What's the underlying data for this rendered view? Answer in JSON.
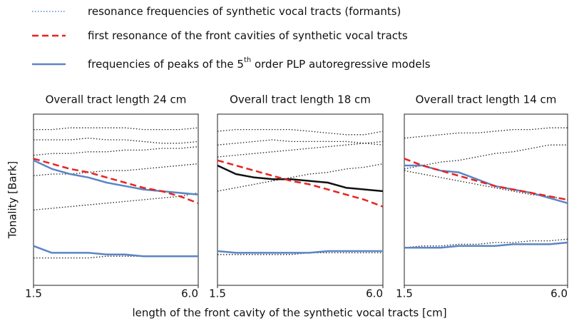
{
  "legend": [
    {
      "label": "resonance frequencies of synthetic vocal tracts (formants)",
      "color": "#3b6fc4",
      "style": "dotted"
    },
    {
      "label": "first resonance of the front cavities of synthetic vocal tracts",
      "color": "#e8231f",
      "style": "dashed"
    },
    {
      "label": "frequencies of peaks of the 5",
      "sup": "th",
      "label_end": " order PLP autoregressive models",
      "color": "#5b86c5",
      "style": "solid"
    }
  ],
  "xlabel": "length of the front cavity of the synthetic vocal tracts [cm]",
  "ylabel": "Tonality [Bark]",
  "chart_data": [
    {
      "type": "line",
      "title": "Overall tract length 24 cm",
      "x": [
        1.5,
        2.0,
        2.5,
        3.0,
        3.5,
        4.0,
        4.5,
        5.0,
        5.5,
        6.0
      ],
      "xlim": [
        1.5,
        6.0
      ],
      "xticks": [
        1.5,
        {
          "value": 6.0,
          "label": "6.0"
        }
      ],
      "ylim": [
        0,
        100
      ],
      "series": [
        {
          "color": "#222222",
          "style": "dotted",
          "values": [
            91,
            91,
            92,
            92,
            92,
            92,
            91,
            91,
            91,
            92
          ]
        },
        {
          "color": "#222222",
          "style": "dotted",
          "values": [
            85,
            85,
            85,
            86,
            85,
            85,
            84,
            83,
            83,
            84
          ]
        },
        {
          "color": "#222222",
          "style": "dotted",
          "values": [
            76,
            77,
            77,
            78,
            78,
            79,
            79,
            80,
            80,
            81
          ]
        },
        {
          "color": "#222222",
          "style": "dotted",
          "values": [
            64,
            65,
            65,
            66,
            67,
            67,
            68,
            69,
            70,
            71
          ]
        },
        {
          "color": "#222222",
          "style": "dotted",
          "values": [
            44,
            45,
            46,
            47,
            48,
            49,
            50,
            51,
            52,
            54
          ]
        },
        {
          "color": "#222222",
          "style": "dotted",
          "values": [
            16,
            16,
            16,
            16,
            17,
            17,
            17,
            17,
            17,
            17
          ]
        },
        {
          "color": "#5b86c5",
          "style": "solid",
          "values": [
            73,
            68,
            65,
            63,
            60,
            58,
            56,
            55,
            54,
            53
          ]
        },
        {
          "color": "#5b86c5",
          "style": "solid",
          "values": [
            23,
            19,
            19,
            19,
            18,
            18,
            17,
            17,
            17,
            17
          ]
        },
        {
          "color": "#e8231f",
          "style": "dashed",
          "values": [
            74,
            71,
            68,
            66,
            63,
            60,
            57,
            55,
            52,
            48
          ]
        }
      ]
    },
    {
      "type": "line",
      "title": "Overall tract length 18 cm",
      "x": [
        1.5,
        2.0,
        2.5,
        3.0,
        3.5,
        4.0,
        4.5,
        5.0,
        5.5,
        6.0
      ],
      "xlim": [
        1.5,
        6.0
      ],
      "xticks": [
        1.5,
        {
          "value": 6.0,
          "label": "6.0"
        }
      ],
      "ylim": [
        0,
        100
      ],
      "series": [
        {
          "color": "#222222",
          "style": "dotted",
          "values": [
            90,
            91,
            91,
            91,
            91,
            90,
            89,
            88,
            88,
            90
          ]
        },
        {
          "color": "#222222",
          "style": "dotted",
          "values": [
            82,
            83,
            84,
            85,
            84,
            84,
            84,
            84,
            83,
            82
          ]
        },
        {
          "color": "#222222",
          "style": "dotted",
          "values": [
            75,
            76,
            77,
            78,
            79,
            80,
            81,
            82,
            83,
            84
          ]
        },
        {
          "color": "#222222",
          "style": "dotted",
          "values": [
            55,
            57,
            59,
            61,
            63,
            65,
            66,
            68,
            69,
            71
          ]
        },
        {
          "color": "#222222",
          "style": "dotted",
          "values": [
            18,
            18,
            18,
            18,
            18,
            19,
            19,
            19,
            19,
            19
          ]
        },
        {
          "color": "#111111",
          "style": "solid",
          "values": [
            70,
            65,
            63,
            62,
            62,
            61,
            60,
            57,
            56,
            55
          ]
        },
        {
          "color": "#5b86c5",
          "style": "solid",
          "values": [
            20,
            19,
            19,
            19,
            19,
            19,
            20,
            20,
            20,
            20
          ]
        },
        {
          "color": "#e8231f",
          "style": "dashed",
          "values": [
            73,
            70,
            67,
            64,
            61,
            59,
            56,
            53,
            50,
            46
          ]
        }
      ]
    },
    {
      "type": "line",
      "title": "Overall tract length 14 cm",
      "x": [
        1.5,
        2.0,
        2.5,
        3.0,
        3.5,
        4.0,
        4.5,
        5.0,
        5.5,
        6.0
      ],
      "xlim": [
        1.5,
        6.0
      ],
      "xticks": [
        1.5,
        {
          "value": 6.0,
          "label": "6.0"
        }
      ],
      "ylim": [
        0,
        100
      ],
      "series": [
        {
          "color": "#222222",
          "style": "dotted",
          "values": [
            86,
            87,
            88,
            89,
            89,
            90,
            91,
            91,
            92,
            92
          ]
        },
        {
          "color": "#222222",
          "style": "dotted",
          "values": [
            68,
            70,
            72,
            73,
            75,
            77,
            78,
            80,
            82,
            82
          ]
        },
        {
          "color": "#222222",
          "style": "dotted",
          "values": [
            67,
            65,
            63,
            61,
            59,
            57,
            55,
            53,
            52,
            50
          ]
        },
        {
          "color": "#222222",
          "style": "dotted",
          "values": [
            22,
            23,
            23,
            24,
            24,
            25,
            25,
            26,
            26,
            27
          ]
        },
        {
          "color": "#5b86c5",
          "style": "solid",
          "values": [
            70,
            70,
            67,
            66,
            62,
            58,
            56,
            54,
            51,
            48
          ]
        },
        {
          "color": "#5b86c5",
          "style": "solid",
          "values": [
            22,
            22,
            22,
            23,
            23,
            23,
            24,
            24,
            24,
            25
          ]
        },
        {
          "color": "#e8231f",
          "style": "dashed",
          "values": [
            74,
            70,
            67,
            64,
            61,
            58,
            56,
            54,
            52,
            50
          ]
        }
      ]
    }
  ]
}
